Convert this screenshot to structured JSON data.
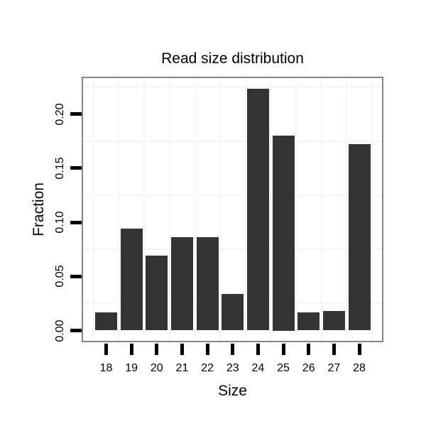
{
  "chart_data": {
    "type": "bar",
    "title": "Read size distribution",
    "xlabel": "Size",
    "ylabel": "Fraction",
    "categories": [
      "18",
      "19",
      "20",
      "21",
      "22",
      "23",
      "24",
      "25",
      "26",
      "27",
      "28"
    ],
    "values": [
      0.017,
      0.094,
      0.069,
      0.086,
      0.086,
      0.034,
      0.223,
      0.18,
      0.017,
      0.018,
      0.172
    ],
    "ytick_values": [
      0.0,
      0.05,
      0.1,
      0.15,
      0.2
    ],
    "ytick_labels": [
      "0.00",
      "0.05",
      "0.10",
      "0.15",
      "0.20"
    ],
    "grid_y_values": [
      0.025,
      0.075,
      0.125,
      0.175,
      0.225
    ],
    "ylim": [
      -0.0095,
      0.2331
    ],
    "grid": true,
    "legend_position": "none",
    "colors": {
      "bar": "#333333",
      "panel_border": "#868686",
      "gridline": "#f5f5f5",
      "tick": "#000000",
      "text": "#000000",
      "background": "#ffffff"
    }
  }
}
